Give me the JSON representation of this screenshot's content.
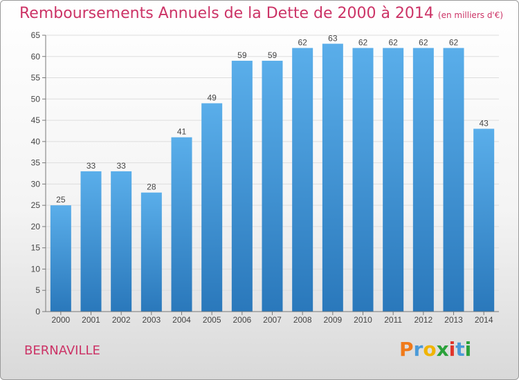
{
  "title": "Remboursements Annuels de la Dette de 2000 à 2014",
  "unit": "(en milliers d'€)",
  "commune": "BERNAVILLE",
  "logo": {
    "letters": [
      "P",
      "r",
      "o",
      "x",
      "i",
      "t",
      "i"
    ],
    "colors": [
      "#f07a1a",
      "#4a9ad8",
      "#f0b400",
      "#2aa13a",
      "#e0352b",
      "#4a9ad8",
      "#2aa13a"
    ]
  },
  "colors": {
    "accent": "#cc3366",
    "bar_top": "#5aaeea",
    "bar_bottom": "#2a78bb"
  },
  "chart_data": {
    "type": "bar",
    "categories": [
      "2000",
      "2001",
      "2002",
      "2003",
      "2004",
      "2005",
      "2006",
      "2007",
      "2008",
      "2009",
      "2010",
      "2011",
      "2012",
      "2013",
      "2014"
    ],
    "values": [
      25,
      33,
      33,
      28,
      41,
      49,
      59,
      59,
      62,
      63,
      62,
      62,
      62,
      62,
      43
    ],
    "ylim": [
      0,
      65
    ],
    "yticks": [
      0,
      5,
      10,
      15,
      20,
      25,
      30,
      35,
      40,
      45,
      50,
      55,
      60,
      65
    ],
    "grid": true
  }
}
